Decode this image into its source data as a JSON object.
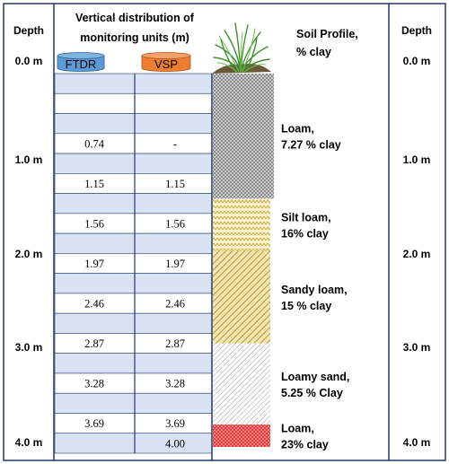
{
  "left_depth_header": "Depth",
  "right_depth_header": "Depth",
  "depth_labels": [
    "0.0 m",
    "1.0 m",
    "2.0 m",
    "3.0 m",
    "4.0 m"
  ],
  "table_title_line1": "Vertical distribution of",
  "table_title_line2": "monitoring units (m)",
  "columns": [
    {
      "name": "FTDR",
      "color": "#5b9bd5"
    },
    {
      "name": "VSP",
      "color": "#ed7d31"
    }
  ],
  "table_rows": [
    {
      "ftdr": "",
      "vsp": ""
    },
    {
      "ftdr": "",
      "vsp": ""
    },
    {
      "ftdr": "",
      "vsp": ""
    },
    {
      "ftdr": "0.74",
      "vsp": "-"
    },
    {
      "ftdr": "",
      "vsp": ""
    },
    {
      "ftdr": "1.15",
      "vsp": "1.15"
    },
    {
      "ftdr": "",
      "vsp": ""
    },
    {
      "ftdr": "1.56",
      "vsp": "1.56"
    },
    {
      "ftdr": "",
      "vsp": ""
    },
    {
      "ftdr": "1.97",
      "vsp": "1.97"
    },
    {
      "ftdr": "",
      "vsp": ""
    },
    {
      "ftdr": "2.46",
      "vsp": "2.46"
    },
    {
      "ftdr": "",
      "vsp": ""
    },
    {
      "ftdr": "2.87",
      "vsp": "2.87"
    },
    {
      "ftdr": "",
      "vsp": ""
    },
    {
      "ftdr": "3.28",
      "vsp": "3.28"
    },
    {
      "ftdr": "",
      "vsp": ""
    },
    {
      "ftdr": "3.69",
      "vsp": "3.69"
    },
    {
      "ftdr": "",
      "vsp": "4.00"
    }
  ],
  "soil_header_line1": "Soil Profile,",
  "soil_header_line2": "% clay",
  "soil_layers": [
    {
      "line1": "Loam,",
      "line2": "7.27 % clay",
      "top_m": 0.0,
      "bottom_m": 1.34,
      "pattern": "dots-dark"
    },
    {
      "line1": "Silt loam,",
      "line2": "16% clay",
      "top_m": 1.34,
      "bottom_m": 1.9,
      "pattern": "waves-yellow"
    },
    {
      "line1": "Sandy loam,",
      "line2": "15 % clay",
      "top_m": 1.9,
      "bottom_m": 2.89,
      "pattern": "diagonal-yellow"
    },
    {
      "line1": "Loamy sand,",
      "line2": "5.25 % Clay",
      "top_m": 2.89,
      "bottom_m": 3.76,
      "pattern": "diagonal-gray"
    },
    {
      "line1": "Loam,",
      "line2": "23% clay",
      "top_m": 3.76,
      "bottom_m": 4.0,
      "pattern": "dots-red"
    }
  ],
  "grass_icon": "grass-icon"
}
